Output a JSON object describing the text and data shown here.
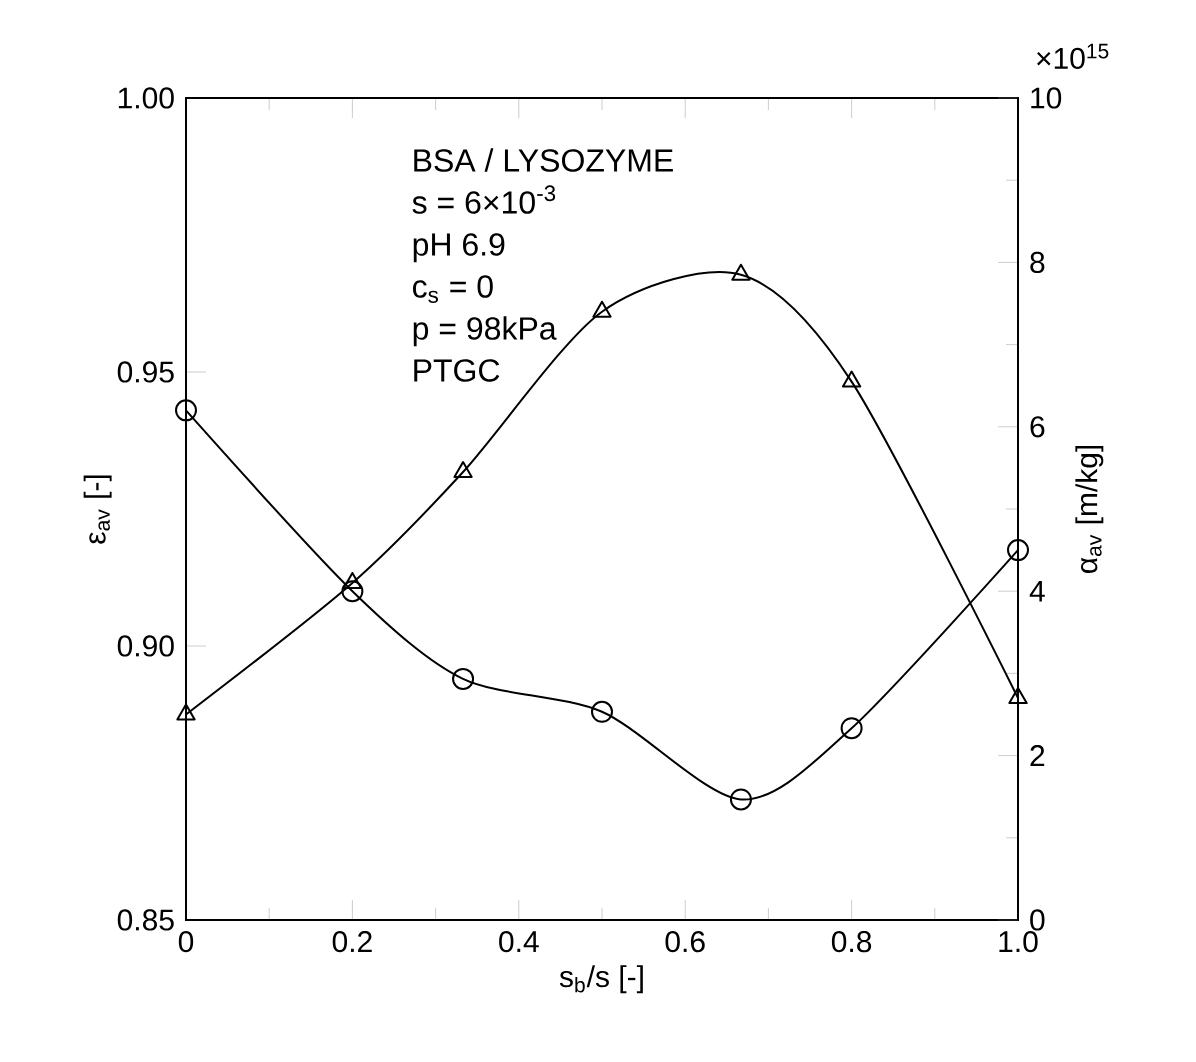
{
  "chart_data": {
    "type": "line",
    "x": [
      0,
      0.2,
      0.333,
      0.5,
      0.667,
      0.8,
      1.0
    ],
    "xlabel": "s$_{b}$/s  [-]",
    "ylabel": "ε$_{av}$  [-]",
    "y2label": "α$_{av}$  [m/kg]",
    "xlim": [
      0,
      1.0
    ],
    "xticks": [
      0,
      0.2,
      0.4,
      0.6,
      0.8,
      {
        "value": 1.0,
        "label": "1.0"
      }
    ],
    "ylim": [
      0.85,
      1.0
    ],
    "yticks": [
      0.85,
      {
        "value": 0.9,
        "label": "0.90"
      },
      0.95,
      {
        "value": 1.0,
        "label": "1.00"
      }
    ],
    "y2lim": [
      0,
      10
    ],
    "y2ticks": [
      0,
      2,
      4,
      6,
      8,
      10
    ],
    "series": [
      {
        "color": "#000000",
        "marker": "circle",
        "values": [
          0.943,
          0.91,
          0.894,
          0.888,
          0.872,
          0.885,
          0.9175
        ]
      },
      {
        "color": "#000000",
        "marker": "triangle",
        "axis": "y2",
        "values": [
          2.5,
          4.1,
          5.45,
          7.4,
          7.85,
          6.55,
          2.7
        ]
      }
    ],
    "annotations": [
      "BSA / LYSOZYME",
      "s = 6×10$^{-3}$",
      "pH 6.9",
      "c$_{s}$ = 0",
      "p = 98kPa",
      "PTGC",
      "×10$^{15}$"
    ]
  }
}
